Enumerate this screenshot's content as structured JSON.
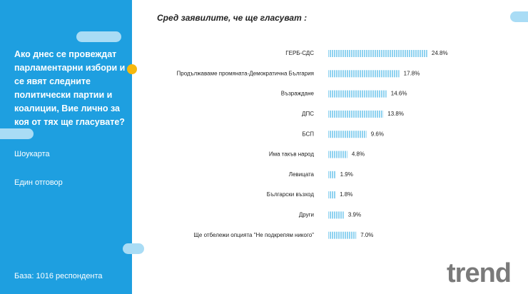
{
  "sidebar": {
    "question": "Ако днес се провеждат парламентарни избори и се явят следните политически партии и коалиции, Вие лично за коя от тях ще гласувате?",
    "method": "Шоукарта",
    "answer_type": "Един отговор",
    "base": "База:  1016 респондента"
  },
  "logo": "trend",
  "chart_data": {
    "type": "bar",
    "orientation": "horizontal",
    "title": "Сред заявилите, че ще гласуват :",
    "categories": [
      "ГЕРБ-СДС",
      "Продължаваме промяната-Демократична България",
      "Възраждане",
      "ДПС",
      "БСП",
      "Има такъв народ",
      "Левицата",
      "Български възход",
      "Други",
      "Ще отбележи опцията \"Не подкрепям никого\""
    ],
    "values": [
      24.8,
      17.8,
      14.6,
      13.8,
      9.6,
      4.8,
      1.9,
      1.8,
      3.9,
      7.0
    ],
    "value_labels": [
      "24.8%",
      "17.8%",
      "14.6%",
      "13.8%",
      "9.6%",
      "4.8%",
      "1.9%",
      "1.8%",
      "3.9%",
      "7.0%"
    ],
    "color": "#8fd2f0"
  }
}
